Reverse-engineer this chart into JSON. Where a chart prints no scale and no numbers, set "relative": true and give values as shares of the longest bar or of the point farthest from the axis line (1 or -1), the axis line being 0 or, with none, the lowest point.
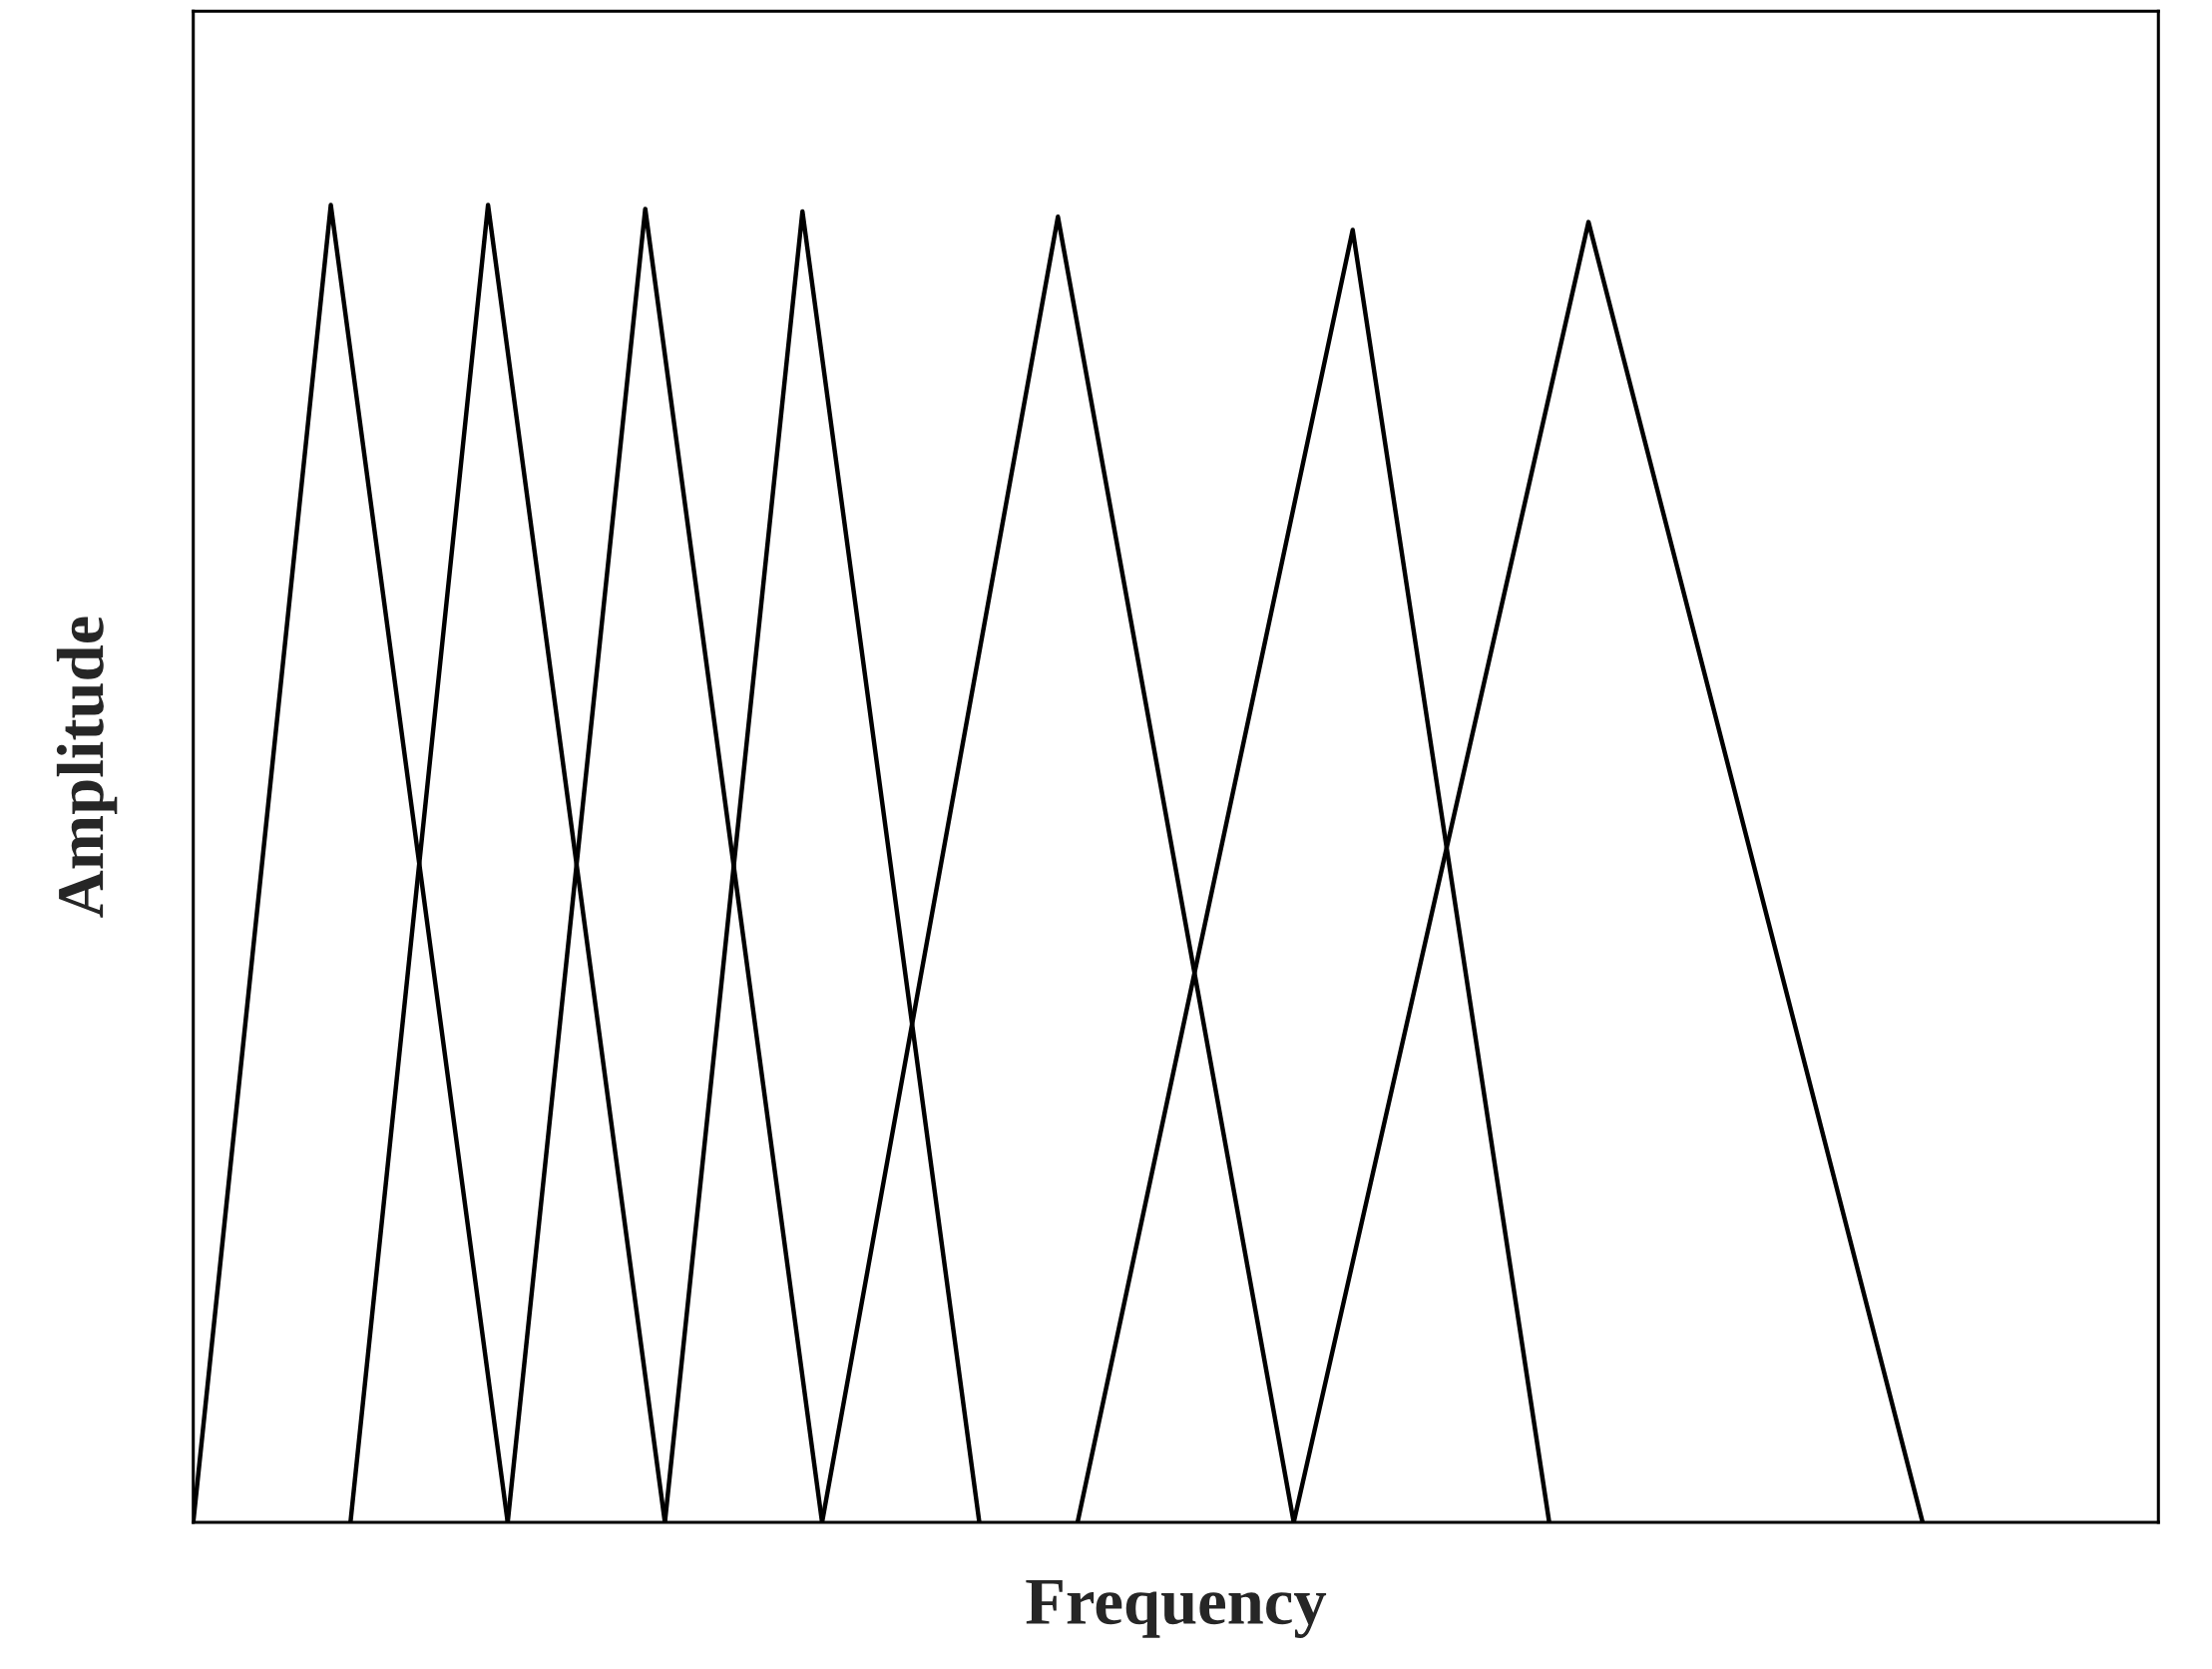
{
  "chart_data": {
    "type": "line",
    "xlabel": "Frequency",
    "ylabel": "Amplitude",
    "relative": true,
    "tick_labels": false,
    "legend": false,
    "marker": "none",
    "line_style": "solid",
    "categories": [
      null,
      null,
      null,
      null,
      null,
      null,
      null,
      null,
      null,
      null,
      null,
      null,
      null,
      null,
      null,
      null,
      null,
      null,
      null,
      null,
      null,
      null,
      null,
      null,
      null,
      null,
      null,
      null,
      null,
      null,
      null,
      null,
      null,
      null,
      null,
      null,
      null,
      null,
      null,
      null,
      null,
      null,
      null,
      null,
      null,
      null,
      null,
      null,
      null,
      null,
      null,
      null,
      null,
      null,
      null,
      null,
      null,
      null,
      null,
      null,
      null,
      null,
      null,
      null,
      null,
      null,
      null,
      null,
      null,
      null,
      null,
      null,
      null,
      null,
      null,
      null,
      null,
      null,
      null,
      null,
      null,
      null,
      null,
      null,
      null,
      null,
      null,
      null,
      null,
      null,
      null,
      null,
      null,
      null,
      null,
      null,
      null,
      null,
      null,
      null,
      null
    ],
    "series": [
      {
        "color": "#000000",
        "values": [
          0,
          null,
          null,
          null,
          null,
          null,
          null,
          1,
          null,
          null,
          null,
          null,
          null,
          null,
          null,
          null,
          0,
          null,
          null,
          null,
          null,
          null,
          null,
          null,
          null,
          null,
          null,
          null,
          null,
          null,
          null,
          null,
          null,
          null,
          null,
          null,
          null,
          null,
          null,
          null,
          null,
          null,
          null,
          null,
          null,
          null,
          null,
          null,
          null,
          null,
          null,
          null,
          null,
          null,
          null,
          null,
          null,
          null,
          null,
          null,
          null,
          null,
          null,
          null,
          null,
          null,
          null,
          null,
          null,
          null,
          null,
          null,
          null,
          null,
          null,
          null,
          null,
          null,
          null,
          null,
          null,
          null,
          null,
          null,
          null,
          null,
          null,
          null,
          null,
          null,
          null,
          null,
          null,
          null,
          null,
          null,
          null,
          null,
          null,
          null,
          null
        ]
      },
      {
        "color": "#000000",
        "values": [
          null,
          null,
          null,
          null,
          null,
          null,
          null,
          null,
          0,
          null,
          null,
          null,
          null,
          null,
          null,
          1,
          null,
          null,
          null,
          null,
          null,
          null,
          null,
          null,
          0,
          null,
          null,
          null,
          null,
          null,
          null,
          null,
          null,
          null,
          null,
          null,
          null,
          null,
          null,
          null,
          null,
          null,
          null,
          null,
          null,
          null,
          null,
          null,
          null,
          null,
          null,
          null,
          null,
          null,
          null,
          null,
          null,
          null,
          null,
          null,
          null,
          null,
          null,
          null,
          null,
          null,
          null,
          null,
          null,
          null,
          null,
          null,
          null,
          null,
          null,
          null,
          null,
          null,
          null,
          null,
          null,
          null,
          null,
          null,
          null,
          null,
          null,
          null,
          null,
          null,
          null,
          null,
          null,
          null,
          null,
          null,
          null,
          null,
          null,
          null,
          null
        ]
      },
      {
        "color": "#000000",
        "values": [
          null,
          null,
          null,
          null,
          null,
          null,
          null,
          null,
          null,
          null,
          null,
          null,
          null,
          null,
          null,
          null,
          0,
          null,
          null,
          null,
          null,
          null,
          null,
          0.997,
          null,
          null,
          null,
          null,
          null,
          null,
          null,
          null,
          0,
          null,
          null,
          null,
          null,
          null,
          null,
          null,
          null,
          null,
          null,
          null,
          null,
          null,
          null,
          null,
          null,
          null,
          null,
          null,
          null,
          null,
          null,
          null,
          null,
          null,
          null,
          null,
          null,
          null,
          null,
          null,
          null,
          null,
          null,
          null,
          null,
          null,
          null,
          null,
          null,
          null,
          null,
          null,
          null,
          null,
          null,
          null,
          null,
          null,
          null,
          null,
          null,
          null,
          null,
          null,
          null,
          null,
          null,
          null,
          null,
          null,
          null,
          null,
          null,
          null,
          null,
          null,
          null
        ]
      },
      {
        "color": "#000000",
        "values": [
          null,
          null,
          null,
          null,
          null,
          null,
          null,
          null,
          null,
          null,
          null,
          null,
          null,
          null,
          null,
          null,
          null,
          null,
          null,
          null,
          null,
          null,
          null,
          null,
          0,
          null,
          null,
          null,
          null,
          null,
          null,
          0.995,
          null,
          null,
          null,
          null,
          null,
          null,
          null,
          null,
          0,
          null,
          null,
          null,
          null,
          null,
          null,
          null,
          null,
          null,
          null,
          null,
          null,
          null,
          null,
          null,
          null,
          null,
          null,
          null,
          null,
          null,
          null,
          null,
          null,
          null,
          null,
          null,
          null,
          null,
          null,
          null,
          null,
          null,
          null,
          null,
          null,
          null,
          null,
          null,
          null,
          null,
          null,
          null,
          null,
          null,
          null,
          null,
          null,
          null,
          null,
          null,
          null,
          null,
          null,
          null,
          null,
          null,
          null,
          null,
          null
        ]
      },
      {
        "color": "#000000",
        "values": [
          null,
          null,
          null,
          null,
          null,
          null,
          null,
          null,
          null,
          null,
          null,
          null,
          null,
          null,
          null,
          null,
          null,
          null,
          null,
          null,
          null,
          null,
          null,
          null,
          null,
          null,
          null,
          null,
          null,
          null,
          null,
          null,
          0,
          null,
          null,
          null,
          null,
          null,
          null,
          null,
          null,
          null,
          null,
          null,
          0.991,
          null,
          null,
          null,
          null,
          null,
          null,
          null,
          null,
          null,
          null,
          null,
          0,
          null,
          null,
          null,
          null,
          null,
          null,
          null,
          null,
          null,
          null,
          null,
          null,
          null,
          null,
          null,
          null,
          null,
          null,
          null,
          null,
          null,
          null,
          null,
          null,
          null,
          null,
          null,
          null,
          null,
          null,
          null,
          null,
          null,
          null,
          null,
          null,
          null,
          null,
          null,
          null,
          null,
          null,
          null,
          null
        ]
      },
      {
        "color": "#000000",
        "values": [
          null,
          null,
          null,
          null,
          null,
          null,
          null,
          null,
          null,
          null,
          null,
          null,
          null,
          null,
          null,
          null,
          null,
          null,
          null,
          null,
          null,
          null,
          null,
          null,
          null,
          null,
          null,
          null,
          null,
          null,
          null,
          null,
          null,
          null,
          null,
          null,
          null,
          null,
          null,
          null,
          null,
          null,
          null,
          null,
          null,
          0,
          null,
          null,
          null,
          null,
          null,
          null,
          null,
          null,
          null,
          null,
          null,
          null,
          null,
          0.981,
          null,
          null,
          null,
          null,
          null,
          null,
          null,
          null,
          null,
          0,
          null,
          null,
          null,
          null,
          null,
          null,
          null,
          null,
          null,
          null,
          null,
          null,
          null,
          null,
          null,
          null,
          null,
          null,
          null,
          null,
          null,
          null,
          null,
          null,
          null,
          null,
          null,
          null,
          null,
          null,
          null
        ]
      },
      {
        "color": "#000000",
        "values": [
          null,
          null,
          null,
          null,
          null,
          null,
          null,
          null,
          null,
          null,
          null,
          null,
          null,
          null,
          null,
          null,
          null,
          null,
          null,
          null,
          null,
          null,
          null,
          null,
          null,
          null,
          null,
          null,
          null,
          null,
          null,
          null,
          null,
          null,
          null,
          null,
          null,
          null,
          null,
          null,
          null,
          null,
          null,
          null,
          null,
          null,
          null,
          null,
          null,
          null,
          null,
          null,
          null,
          null,
          null,
          null,
          0,
          null,
          null,
          null,
          null,
          null,
          null,
          null,
          null,
          null,
          null,
          null,
          null,
          null,
          null,
          0.987,
          null,
          null,
          null,
          null,
          null,
          null,
          null,
          null,
          null,
          null,
          null,
          null,
          null,
          null,
          null,
          null,
          0,
          null,
          null,
          null,
          null,
          null,
          null,
          null,
          null,
          null,
          null,
          null,
          null
        ]
      }
    ]
  }
}
